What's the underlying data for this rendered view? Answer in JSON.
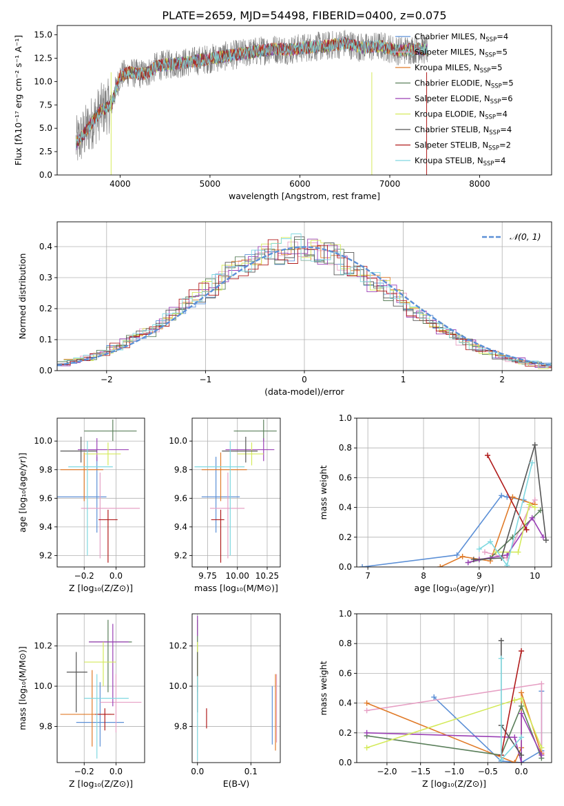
{
  "figure_title": "PLATE=2659, MJD=54498, FIBERID=0400, z=0.075",
  "models": [
    {
      "name": "Chabrier MILES",
      "nssp": "4",
      "color": "#5b8fd6"
    },
    {
      "name": "Salpeter MILES",
      "nssp": "5",
      "color": "#e6a0c4"
    },
    {
      "name": "Kroupa MILES",
      "nssp": "5",
      "color": "#e07a28"
    },
    {
      "name": "Chabrier ELODIE",
      "nssp": "5",
      "color": "#5a7f5a"
    },
    {
      "name": "Salpeter ELODIE",
      "nssp": "6",
      "color": "#9a3fb5"
    },
    {
      "name": "Kroupa ELODIE",
      "nssp": "4",
      "color": "#d4ea5a"
    },
    {
      "name": "Chabrier STELIB",
      "nssp": "4",
      "color": "#555555"
    },
    {
      "name": "Salpeter STELIB",
      "nssp": "2",
      "color": "#b01a1a"
    },
    {
      "name": "Kroupa STELIB",
      "nssp": "4",
      "color": "#7fd8e0"
    }
  ],
  "chart_data": [
    {
      "id": "spectrum",
      "type": "line",
      "title": "PLATE=2659, MJD=54498, FIBERID=0400, z=0.075",
      "xlabel": "wavelength [Angstrom, rest frame]",
      "ylabel": "Flux [fλ10⁻¹⁷ erg cm⁻² s⁻¹ A⁻¹]",
      "xlim": [
        3300,
        8800
      ],
      "ylim": [
        0,
        16
      ],
      "xticks": [
        4000,
        5000,
        6000,
        7000,
        8000
      ],
      "yticks": [
        0.0,
        2.5,
        5.0,
        7.5,
        10.0,
        12.5,
        15.0
      ],
      "legend": "right",
      "data_color": "#808080",
      "continuum": {
        "x": [
          3500,
          3600,
          3700,
          3800,
          3900,
          4000,
          4100,
          4200,
          4300,
          4400,
          4500,
          4700,
          4900,
          5100,
          5300,
          5500,
          5700,
          5900,
          6100,
          6300,
          6500,
          6700,
          6900,
          7100,
          7300,
          7400
        ],
        "y": [
          3.2,
          4.4,
          5.8,
          7.0,
          7.5,
          10.6,
          11.0,
          10.8,
          10.9,
          11.6,
          11.8,
          12.0,
          12.3,
          12.6,
          12.9,
          13.2,
          13.5,
          13.4,
          13.7,
          13.8,
          14.1,
          13.6,
          13.8,
          13.3,
          13.5,
          13.4
        ]
      }
    },
    {
      "id": "residuals",
      "type": "bar",
      "xlabel": "(data-model)/error",
      "ylabel": "Normed distribution",
      "xlim": [
        -2.5,
        2.5
      ],
      "ylim": [
        0,
        0.48
      ],
      "xticks": [
        -2,
        -1,
        0,
        1,
        2
      ],
      "yticks": [
        0.0,
        0.1,
        0.2,
        0.3,
        0.4
      ],
      "grid": true,
      "legend": "top-right",
      "legend_label": "𝒩(0, 1)",
      "reference_color": "#5b8fd6",
      "reference_mean": 0,
      "reference_sigma": 1
    },
    {
      "id": "age-vs-z",
      "type": "scatter",
      "xlabel": "Z [log₁₀(Z/Z⊙)]",
      "ylabel": "age  [log₁₀(age/yr)]",
      "xlim": [
        -0.37,
        0.18
      ],
      "ylim": [
        9.12,
        10.16
      ],
      "xticks": [
        -0.2,
        0.0
      ],
      "yticks": [
        9.2,
        9.4,
        9.6,
        9.8,
        10.0
      ],
      "grid": true,
      "points": [
        {
          "x": -0.12,
          "y": 9.61,
          "xerr": [
            0.25,
            0.06
          ],
          "yerr": [
            0.25,
            0.28
          ],
          "model": 0
        },
        {
          "x": -0.1,
          "y": 9.53,
          "xerr": [
            0.12,
            0.25
          ],
          "yerr": [
            0.35,
            0.25
          ],
          "model": 1
        },
        {
          "x": -0.2,
          "y": 9.8,
          "xerr": [
            0.15,
            0.12
          ],
          "yerr": [
            0.22,
            0.12
          ],
          "model": 2
        },
        {
          "x": -0.02,
          "y": 10.07,
          "xerr": [
            0.18,
            0.15
          ],
          "yerr": [
            0.07,
            0.08
          ],
          "model": 3
        },
        {
          "x": -0.12,
          "y": 9.94,
          "xerr": [
            0.12,
            0.2
          ],
          "yerr": [
            0.08,
            0.08
          ],
          "model": 4
        },
        {
          "x": -0.05,
          "y": 9.91,
          "xerr": [
            0.15,
            0.08
          ],
          "yerr": [
            0.08,
            0.08
          ],
          "model": 5
        },
        {
          "x": -0.22,
          "y": 9.93,
          "xerr": [
            0.13,
            0.1
          ],
          "yerr": [
            0.08,
            0.1
          ],
          "model": 6
        },
        {
          "x": -0.05,
          "y": 9.45,
          "xerr": [
            0.06,
            0.06
          ],
          "yerr": [
            0.3,
            0.07
          ],
          "model": 7
        },
        {
          "x": -0.18,
          "y": 9.82,
          "xerr": [
            0.12,
            0.16
          ],
          "yerr": [
            0.62,
            0.18
          ],
          "model": 8
        }
      ]
    },
    {
      "id": "mass-weight-vs-age",
      "type": "line",
      "xlabel": "age  [log₁₀(age/yr)]",
      "ylabel": "mass weight",
      "xlim": [
        6.8,
        10.3
      ],
      "ylim": [
        0,
        1
      ],
      "xticks": [
        7,
        8,
        9,
        10
      ],
      "yticks": [
        0.0,
        0.2,
        0.4,
        0.6,
        0.8,
        1.0
      ],
      "grid": true,
      "series": [
        {
          "model": 0,
          "x": [
            6.9,
            8.6,
            9.4,
            9.5,
            9.8
          ],
          "y": [
            0.0,
            0.08,
            0.48,
            0.47,
            0.45
          ]
        },
        {
          "model": 1,
          "x": [
            9.1,
            9.5,
            9.9,
            10.0
          ],
          "y": [
            0.1,
            0.06,
            0.4,
            0.45
          ]
        },
        {
          "model": 2,
          "x": [
            8.3,
            8.7,
            9.2,
            9.6,
            10.0
          ],
          "y": [
            0.0,
            0.07,
            0.04,
            0.47,
            0.42
          ]
        },
        {
          "model": 3,
          "x": [
            8.8,
            9.2,
            9.6,
            10.1
          ],
          "y": [
            0.03,
            0.06,
            0.2,
            0.38
          ]
        },
        {
          "model": 4,
          "x": [
            8.8,
            9.0,
            9.5,
            9.95,
            10.15
          ],
          "y": [
            0.03,
            0.05,
            0.08,
            0.33,
            0.2
          ]
        },
        {
          "model": 5,
          "x": [
            9.3,
            9.7,
            9.9,
            10.0
          ],
          "y": [
            0.1,
            0.1,
            0.42,
            0.4
          ]
        },
        {
          "model": 6,
          "x": [
            8.9,
            9.4,
            10.0,
            10.2
          ],
          "y": [
            0.05,
            0.06,
            0.82,
            0.18
          ]
        },
        {
          "model": 7,
          "x": [
            9.15,
            9.85
          ],
          "y": [
            0.75,
            0.25
          ]
        },
        {
          "model": 8,
          "x": [
            9.0,
            9.2,
            9.5,
            9.95
          ],
          "y": [
            0.12,
            0.17,
            0.01,
            0.7
          ]
        }
      ]
    },
    {
      "id": "mass-vs-z",
      "type": "scatter",
      "xlabel": "Z [log₁₀(Z/Z⊙)]",
      "ylabel": "mass [log₁₀(M/M⊙)]",
      "xlim": [
        -0.37,
        0.18
      ],
      "ylim": [
        9.62,
        10.36
      ],
      "xticks": [
        -0.2,
        0.0
      ],
      "yticks": [
        9.8,
        10.0,
        10.2
      ],
      "grid": true,
      "points": [
        {
          "x": -0.1,
          "y": 9.82,
          "xerr": [
            0.15,
            0.15
          ],
          "yerr": [
            0.12,
            0.2
          ],
          "model": 0
        },
        {
          "x": 0.0,
          "y": 9.92,
          "xerr": [
            0.1,
            0.16
          ],
          "yerr": [
            0.15,
            0.14
          ],
          "model": 1
        },
        {
          "x": -0.15,
          "y": 9.86,
          "xerr": [
            0.2,
            0.12
          ],
          "yerr": [
            0.16,
            0.22
          ],
          "model": 2
        },
        {
          "x": -0.05,
          "y": 10.22,
          "xerr": [
            0.12,
            0.15
          ],
          "yerr": [
            0.25,
            0.11
          ],
          "model": 3
        },
        {
          "x": -0.02,
          "y": 10.22,
          "xerr": [
            0.15,
            0.1
          ],
          "yerr": [
            0.32,
            0.09
          ],
          "model": 4
        },
        {
          "x": -0.08,
          "y": 10.12,
          "xerr": [
            0.12,
            0.08
          ],
          "yerr": [
            0.12,
            0.1
          ],
          "model": 5
        },
        {
          "x": -0.25,
          "y": 10.07,
          "xerr": [
            0.06,
            0.07
          ],
          "yerr": [
            0.2,
            0.1
          ],
          "model": 6
        },
        {
          "x": -0.07,
          "y": 9.86,
          "xerr": [
            0.06,
            0.06
          ],
          "yerr": [
            0.08,
            0.03
          ],
          "model": 7
        },
        {
          "x": -0.12,
          "y": 9.94,
          "xerr": [
            0.08,
            0.2
          ],
          "yerr": [
            0.3,
            0.12
          ],
          "model": 8
        }
      ]
    },
    {
      "id": "mass-vs-ebv",
      "type": "scatter",
      "xlabel": "E(B-V)",
      "ylabel": "",
      "xlim": [
        -0.01,
        0.155
      ],
      "ylim": [
        9.62,
        10.36
      ],
      "xticks": [
        0.0,
        0.1
      ],
      "yticks": [
        9.8,
        10.0,
        10.2
      ],
      "grid": true,
      "points": [
        {
          "x": 0.14,
          "y": 9.86,
          "yerr": [
            0.15,
            0.14
          ],
          "model": 0
        },
        {
          "x": 0.148,
          "y": 9.92,
          "yerr": [
            0.2,
            0.14
          ],
          "model": 1
        },
        {
          "x": 0.146,
          "y": 9.86,
          "yerr": [
            0.18,
            0.2
          ],
          "model": 2
        },
        {
          "x": 0.0,
          "y": 10.22,
          "yerr": [
            0.25,
            0.11
          ],
          "model": 3
        },
        {
          "x": 0.0,
          "y": 10.3,
          "yerr": [
            0.05,
            0.05
          ],
          "model": 4
        },
        {
          "x": 0.0,
          "y": 10.12,
          "yerr": [
            0.12,
            0.1
          ],
          "model": 5
        },
        {
          "x": 0.0,
          "y": 10.07,
          "yerr": [
            0.2,
            0.1
          ],
          "model": 6
        },
        {
          "x": 0.017,
          "y": 9.86,
          "yerr": [
            0.07,
            0.03
          ],
          "model": 7
        },
        {
          "x": 0.0,
          "y": 9.85,
          "yerr": [
            0.22,
            0.2
          ],
          "model": 8
        }
      ]
    },
    {
      "id": "mass-weight-vs-z",
      "type": "line",
      "xlabel": "Z [log₁₀(Z/Z⊙)]",
      "ylabel": "mass weight",
      "xlim": [
        -2.45,
        0.45
      ],
      "ylim": [
        0,
        1
      ],
      "xticks": [
        -2.0,
        -1.5,
        -1.0,
        -0.5,
        0.0
      ],
      "yticks": [
        0.0,
        0.2,
        0.4,
        0.6,
        0.8,
        1.0
      ],
      "grid": true,
      "series": [
        {
          "model": 0,
          "x": [
            -1.3,
            -0.3,
            0.0,
            0.3,
            0.3
          ],
          "y": [
            0.44,
            0.01,
            0.0,
            0.08,
            0.48
          ]
        },
        {
          "model": 1,
          "x": [
            -2.3,
            0.3,
            0.3
          ],
          "y": [
            0.35,
            0.53,
            0.07
          ]
        },
        {
          "model": 2,
          "x": [
            -2.3,
            -0.1,
            0.0,
            0.0,
            0.3
          ],
          "y": [
            0.4,
            0.0,
            0.1,
            0.47,
            0.06
          ]
        },
        {
          "model": 3,
          "x": [
            -2.3,
            -0.3,
            0.0,
            0.3
          ],
          "y": [
            0.18,
            0.05,
            0.38,
            0.03
          ]
        },
        {
          "model": 4,
          "x": [
            -2.3,
            -0.1,
            0.0,
            0.0,
            0.3
          ],
          "y": [
            0.2,
            0.17,
            0.0,
            0.33,
            0.05
          ]
        },
        {
          "model": 5,
          "x": [
            -2.3,
            -0.1,
            0.0,
            0.3
          ],
          "y": [
            0.1,
            0.42,
            0.43,
            0.1
          ]
        },
        {
          "model": 6,
          "x": [
            -0.3,
            -0.3,
            0.0
          ],
          "y": [
            0.82,
            0.25,
            0.05
          ]
        },
        {
          "model": 7,
          "x": [
            -0.3,
            0.0
          ],
          "y": [
            0.05,
            0.75
          ]
        },
        {
          "model": 8,
          "x": [
            -0.3,
            -0.3,
            0.0
          ],
          "y": [
            0.7,
            0.02,
            0.17
          ]
        }
      ]
    }
  ]
}
